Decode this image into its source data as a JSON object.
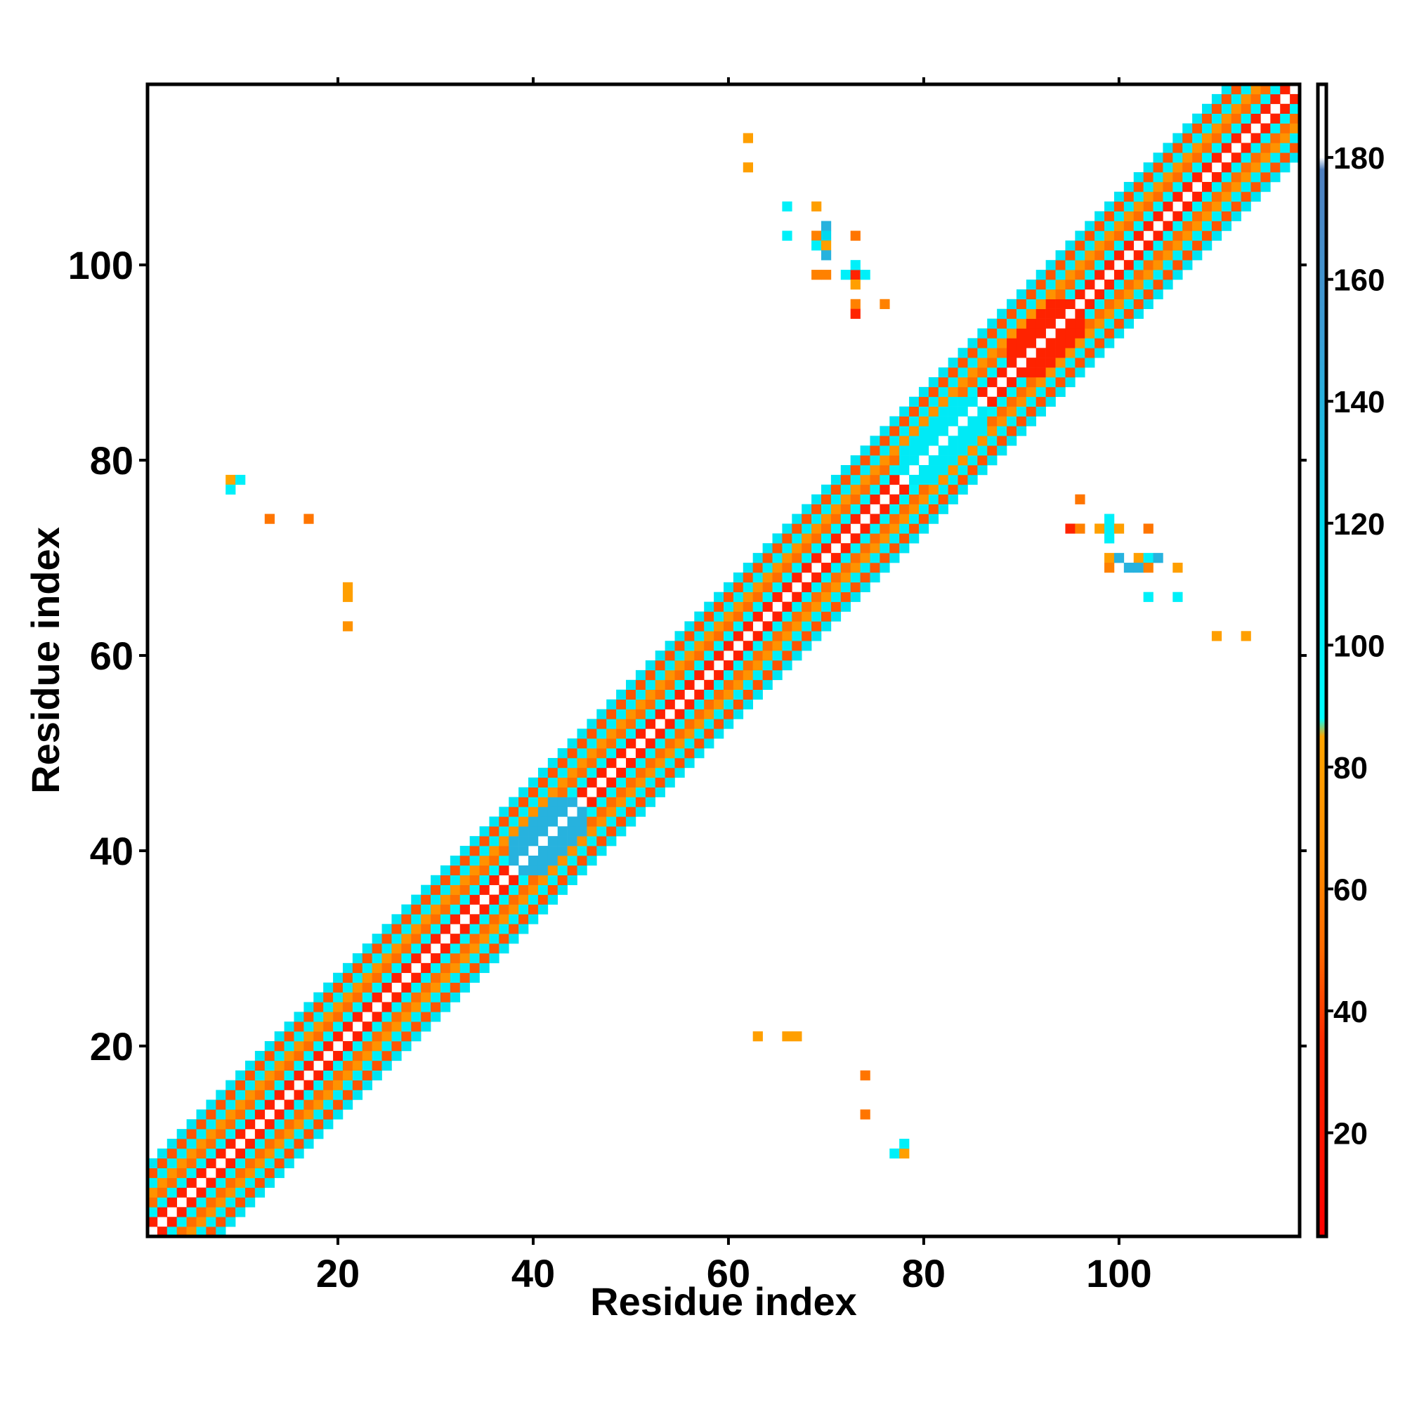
{
  "chart_data": {
    "type": "heatmap",
    "title": "",
    "xlabel": "Residue index",
    "ylabel": "Residue index",
    "xlim": [
      0.5,
      118.5
    ],
    "ylim": [
      0.5,
      118.5
    ],
    "x_ticks": [
      "20",
      "40",
      "60",
      "80",
      "100"
    ],
    "y_ticks": [
      "20",
      "40",
      "60",
      "80",
      "100"
    ],
    "colorbar": {
      "range": [
        3,
        192
      ],
      "ticks": [
        "20",
        "40",
        "60",
        "80",
        "100",
        "120",
        "140",
        "160",
        "180"
      ],
      "stops": [
        {
          "value": 3,
          "color": "#ff0000"
        },
        {
          "value": 35,
          "color": "#ff2a00"
        },
        {
          "value": 50,
          "color": "#ff6a00"
        },
        {
          "value": 65,
          "color": "#ff8c00"
        },
        {
          "value": 85,
          "color": "#ffa500"
        },
        {
          "value": 88,
          "color": "#00ffff"
        },
        {
          "value": 120,
          "color": "#00d8ee"
        },
        {
          "value": 150,
          "color": "#3a9fd6"
        },
        {
          "value": 178,
          "color": "#4f7fbf"
        },
        {
          "value": 180,
          "color": "#ffffff"
        },
        {
          "value": 192,
          "color": "#ffffff"
        }
      ]
    },
    "diagonal_band": {
      "description_values": "distance-dependent contact values along |i-j|",
      "by_offset": [
        {
          "offset": 0,
          "value": null
        },
        {
          "offset": 1,
          "value": 28
        },
        {
          "offset": 2,
          "value": 98
        },
        {
          "offset": 3,
          "value": 52
        },
        {
          "offset": 4,
          "value": 70
        },
        {
          "offset": 5,
          "value": 102
        },
        {
          "offset": 6,
          "value": 45
        },
        {
          "offset": 7,
          "value": 110
        }
      ],
      "irregular_segments": [
        {
          "start": 38,
          "end": 45,
          "value": 140
        },
        {
          "start": 78,
          "end": 86,
          "value": 105
        },
        {
          "start": 89,
          "end": 96,
          "value": 30
        }
      ]
    },
    "off_diagonal_cells": [
      {
        "x": 9,
        "y": 78,
        "value": 85
      },
      {
        "x": 10,
        "y": 78,
        "value": 100
      },
      {
        "x": 9,
        "y": 77,
        "value": 100
      },
      {
        "x": 13,
        "y": 74,
        "value": 55
      },
      {
        "x": 17,
        "y": 74,
        "value": 55
      },
      {
        "x": 21,
        "y": 67,
        "value": 80
      },
      {
        "x": 21,
        "y": 66,
        "value": 80
      },
      {
        "x": 21,
        "y": 63,
        "value": 70
      },
      {
        "x": 62,
        "y": 113,
        "value": 80
      },
      {
        "x": 62,
        "y": 110,
        "value": 80
      },
      {
        "x": 66,
        "y": 106,
        "value": 100
      },
      {
        "x": 69,
        "y": 106,
        "value": 80
      },
      {
        "x": 70,
        "y": 104,
        "value": 140
      },
      {
        "x": 69,
        "y": 103,
        "value": 60
      },
      {
        "x": 70,
        "y": 103,
        "value": 120
      },
      {
        "x": 73,
        "y": 103,
        "value": 55
      },
      {
        "x": 66,
        "y": 103,
        "value": 100
      },
      {
        "x": 69,
        "y": 102,
        "value": 100
      },
      {
        "x": 70,
        "y": 102,
        "value": 80
      },
      {
        "x": 70,
        "y": 101,
        "value": 140
      },
      {
        "x": 69,
        "y": 99,
        "value": 60
      },
      {
        "x": 70,
        "y": 99,
        "value": 60
      },
      {
        "x": 72,
        "y": 99,
        "value": 100
      },
      {
        "x": 73,
        "y": 99,
        "value": 30
      },
      {
        "x": 74,
        "y": 99,
        "value": 100
      },
      {
        "x": 73,
        "y": 100,
        "value": 100
      },
      {
        "x": 73,
        "y": 98,
        "value": 80
      },
      {
        "x": 73,
        "y": 96,
        "value": 60
      },
      {
        "x": 73,
        "y": 95,
        "value": 30
      },
      {
        "x": 76,
        "y": 96,
        "value": 60
      },
      {
        "x": 63,
        "y": 21,
        "value": 80
      },
      {
        "x": 66,
        "y": 21,
        "value": 80
      },
      {
        "x": 67,
        "y": 21,
        "value": 80
      },
      {
        "x": 74,
        "y": 17,
        "value": 55
      },
      {
        "x": 74,
        "y": 13,
        "value": 55
      },
      {
        "x": 77,
        "y": 9,
        "value": 100
      },
      {
        "x": 78,
        "y": 9,
        "value": 80
      },
      {
        "x": 78,
        "y": 10,
        "value": 100
      },
      {
        "x": 96,
        "y": 76,
        "value": 55
      },
      {
        "x": 95,
        "y": 73,
        "value": 30
      },
      {
        "x": 96,
        "y": 73,
        "value": 60
      },
      {
        "x": 99,
        "y": 74,
        "value": 100
      },
      {
        "x": 98,
        "y": 73,
        "value": 80
      },
      {
        "x": 99,
        "y": 73,
        "value": 100
      },
      {
        "x": 100,
        "y": 73,
        "value": 80
      },
      {
        "x": 103,
        "y": 73,
        "value": 55
      },
      {
        "x": 99,
        "y": 72,
        "value": 100
      },
      {
        "x": 99,
        "y": 70,
        "value": 80
      },
      {
        "x": 100,
        "y": 70,
        "value": 140
      },
      {
        "x": 102,
        "y": 70,
        "value": 80
      },
      {
        "x": 103,
        "y": 70,
        "value": 100
      },
      {
        "x": 104,
        "y": 70,
        "value": 140
      },
      {
        "x": 99,
        "y": 69,
        "value": 60
      },
      {
        "x": 101,
        "y": 69,
        "value": 140
      },
      {
        "x": 102,
        "y": 69,
        "value": 140
      },
      {
        "x": 103,
        "y": 69,
        "value": 60
      },
      {
        "x": 106,
        "y": 69,
        "value": 80
      },
      {
        "x": 103,
        "y": 66,
        "value": 100
      },
      {
        "x": 106,
        "y": 66,
        "value": 100
      },
      {
        "x": 110,
        "y": 62,
        "value": 80
      },
      {
        "x": 113,
        "y": 62,
        "value": 80
      }
    ]
  }
}
